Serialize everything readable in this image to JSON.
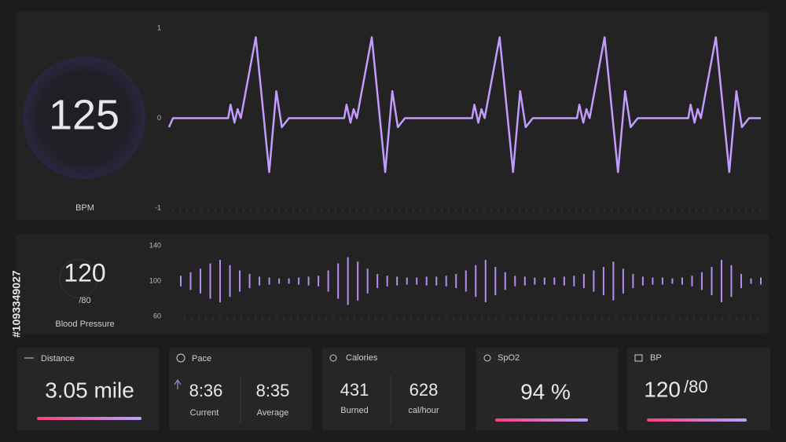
{
  "side_id": "#1093349027",
  "heart_rate": {
    "value": "125",
    "unit": "BPM"
  },
  "blood_pressure": {
    "value": "120",
    "diastolic": "/80",
    "label": "Blood Pressure"
  },
  "cards": [
    {
      "title": "Distance",
      "value": "3.05 mile"
    },
    {
      "title": "Pace",
      "current": "8:36",
      "current_label": "Current",
      "average": "8:35",
      "average_label": "Average"
    },
    {
      "title": "Calories",
      "burned": "431",
      "burned_label": "Burned",
      "rate": "628",
      "rate_label": "cal/hour"
    },
    {
      "title": "SpO2",
      "value": "94 %"
    },
    {
      "title": "BP",
      "value": "120",
      "diastolic": "/80"
    }
  ],
  "chart_data": [
    {
      "type": "line",
      "color": "#c39bff",
      "ylim": [
        -1,
        1
      ],
      "yticks": [
        1,
        0,
        -1
      ],
      "xlim": [
        0,
        750
      ],
      "x": [
        0,
        5,
        75,
        78,
        83,
        87,
        91,
        110,
        127,
        136,
        143,
        152,
        222,
        225,
        230,
        234,
        238,
        257,
        274,
        283,
        290,
        299,
        384,
        387,
        392,
        396,
        400,
        419,
        436,
        445,
        452,
        461,
        517,
        520,
        525,
        529,
        533,
        552,
        569,
        578,
        585,
        594,
        658,
        661,
        666,
        670,
        674,
        693,
        710,
        719,
        726,
        735,
        750
      ],
      "values": [
        -0.1,
        0,
        0,
        0.15,
        -0.05,
        0.1,
        0,
        0.9,
        -0.6,
        0.3,
        -0.1,
        0,
        0,
        0.15,
        -0.05,
        0.1,
        0,
        0.9,
        -0.6,
        0.3,
        -0.1,
        0,
        0,
        0.15,
        -0.05,
        0.1,
        0,
        0.9,
        -0.6,
        0.3,
        -0.1,
        0,
        0,
        0.15,
        -0.05,
        0.1,
        0,
        0.9,
        -0.6,
        0.3,
        -0.1,
        0,
        0,
        0.15,
        -0.05,
        0.1,
        0,
        0.9,
        -0.6,
        0.3,
        -0.1,
        0,
        0
      ]
    },
    {
      "type": "range-bar",
      "color": "#b58cf0",
      "ylim": [
        60,
        140
      ],
      "yticks": [
        140,
        100,
        60
      ],
      "high": [
        106,
        110,
        114,
        120,
        124,
        118,
        112,
        108,
        105,
        104,
        103,
        103,
        104,
        105,
        106,
        112,
        120,
        127,
        122,
        114,
        108,
        106,
        105,
        104,
        104,
        105,
        105,
        106,
        108,
        112,
        118,
        124,
        116,
        110,
        106,
        105,
        104,
        104,
        104,
        105,
        106,
        108,
        112,
        116,
        122,
        114,
        108,
        105,
        104,
        104,
        103,
        104,
        106,
        110,
        116,
        124,
        118,
        108,
        103,
        104
      ],
      "low": [
        94,
        90,
        86,
        80,
        76,
        82,
        88,
        92,
        95,
        96,
        97,
        97,
        96,
        95,
        94,
        88,
        80,
        73,
        78,
        86,
        92,
        94,
        95,
        96,
        96,
        95,
        95,
        94,
        92,
        88,
        82,
        76,
        84,
        90,
        94,
        95,
        96,
        96,
        96,
        95,
        94,
        92,
        88,
        84,
        78,
        86,
        92,
        95,
        96,
        96,
        97,
        96,
        94,
        90,
        84,
        76,
        82,
        92,
        97,
        96
      ]
    }
  ]
}
